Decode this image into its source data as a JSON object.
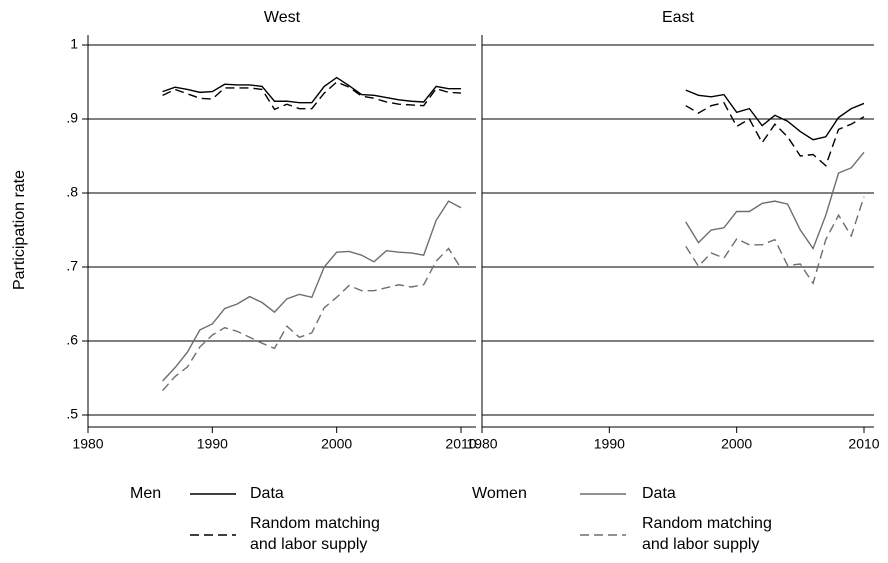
{
  "chart_data": {
    "type": "line",
    "ylabel": "Participation rate",
    "ylim": [
      0.5,
      1
    ],
    "yticks": [
      {
        "value": 0.5,
        "label": ".5"
      },
      {
        "value": 0.6,
        "label": ".6"
      },
      {
        "value": 0.7,
        "label": ".7"
      },
      {
        "value": 0.8,
        "label": ".8"
      },
      {
        "value": 0.9,
        "label": ".9"
      },
      {
        "value": 1,
        "label": "1"
      }
    ],
    "xlim": [
      1980,
      2010
    ],
    "xticks": [
      1980,
      1990,
      2000,
      2010
    ],
    "grid": true,
    "legend_groups": [
      "Men",
      "Women"
    ],
    "panels": [
      {
        "title": "West",
        "x": [
          1986,
          1987,
          1988,
          1989,
          1990,
          1991,
          1992,
          1993,
          1994,
          1995,
          1996,
          1997,
          1998,
          1999,
          2000,
          2001,
          2002,
          2003,
          2004,
          2005,
          2006,
          2007,
          2008,
          2009,
          2010
        ],
        "series": [
          {
            "name": "Data",
            "group": 0,
            "color": "#000000",
            "dashed": false,
            "values": [
              0.937,
              0.943,
              0.94,
              0.936,
              0.937,
              0.947,
              0.946,
              0.946,
              0.944,
              0.924,
              0.924,
              0.922,
              0.922,
              0.944,
              0.956,
              0.945,
              0.933,
              0.932,
              0.929,
              0.926,
              0.924,
              0.923,
              0.944,
              0.941,
              0.941
            ]
          },
          {
            "name": "Random matching and labor supply",
            "group": 0,
            "color": "#000000",
            "dashed": true,
            "values": [
              0.932,
              0.94,
              0.934,
              0.928,
              0.927,
              0.942,
              0.942,
              0.942,
              0.94,
              0.913,
              0.92,
              0.914,
              0.914,
              0.935,
              0.95,
              0.943,
              0.931,
              0.928,
              0.923,
              0.92,
              0.919,
              0.918,
              0.941,
              0.936,
              0.935
            ]
          },
          {
            "name": "Data",
            "group": 1,
            "color": "#6e6e6e",
            "dashed": false,
            "values": [
              0.546,
              0.564,
              0.585,
              0.615,
              0.623,
              0.644,
              0.65,
              0.66,
              0.652,
              0.639,
              0.657,
              0.663,
              0.659,
              0.7,
              0.72,
              0.721,
              0.716,
              0.707,
              0.722,
              0.72,
              0.719,
              0.716,
              0.763,
              0.789,
              0.78
            ]
          },
          {
            "name": "Random matching and labor supply",
            "group": 1,
            "color": "#6e6e6e",
            "dashed": true,
            "values": [
              0.533,
              0.552,
              0.565,
              0.592,
              0.608,
              0.618,
              0.613,
              0.605,
              0.597,
              0.59,
              0.62,
              0.605,
              0.611,
              0.645,
              0.659,
              0.675,
              0.668,
              0.668,
              0.672,
              0.676,
              0.673,
              0.676,
              0.708,
              0.725,
              0.698
            ]
          }
        ]
      },
      {
        "title": "East",
        "x": [
          1996,
          1997,
          1998,
          1999,
          2000,
          2001,
          2002,
          2003,
          2004,
          2005,
          2006,
          2007,
          2008,
          2009,
          2010
        ],
        "series": [
          {
            "color": "#000000",
            "dashed": false,
            "values": [
              0.939,
              0.932,
              0.93,
              0.933,
              0.909,
              0.914,
              0.891,
              0.905,
              0.897,
              0.883,
              0.872,
              0.876,
              0.902,
              0.914,
              0.921
            ]
          },
          {
            "color": "#000000",
            "dashed": true,
            "values": [
              0.918,
              0.908,
              0.918,
              0.922,
              0.89,
              0.9,
              0.868,
              0.893,
              0.876,
              0.85,
              0.852,
              0.837,
              0.886,
              0.893,
              0.903
            ]
          },
          {
            "color": "#6e6e6e",
            "dashed": false,
            "values": [
              0.761,
              0.733,
              0.75,
              0.753,
              0.775,
              0.775,
              0.786,
              0.789,
              0.785,
              0.75,
              0.725,
              0.77,
              0.827,
              0.834,
              0.855
            ]
          },
          {
            "color": "#6e6e6e",
            "dashed": true,
            "values": [
              0.728,
              0.701,
              0.719,
              0.712,
              0.738,
              0.73,
              0.73,
              0.737,
              0.702,
              0.704,
              0.678,
              0.737,
              0.77,
              0.742,
              0.795
            ]
          }
        ]
      }
    ]
  }
}
